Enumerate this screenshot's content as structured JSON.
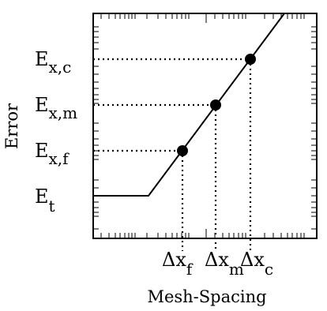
{
  "chart_data": {
    "type": "line",
    "title": "",
    "xlabel": "Mesh-Spacing",
    "ylabel": "Error",
    "x_scale": "log",
    "y_scale": "log",
    "y_ticks": [
      {
        "main": "E",
        "sub": "t",
        "id": "e-t"
      },
      {
        "main": "E",
        "sub": "x,f",
        "id": "e-xf"
      },
      {
        "main": "E",
        "sub": "x,m",
        "id": "e-xm"
      },
      {
        "main": "E",
        "sub": "x,c",
        "id": "e-xc"
      }
    ],
    "x_ticks": [
      {
        "main": "Δx",
        "sub": "f",
        "id": "dx-f"
      },
      {
        "main": "Δx",
        "sub": "m",
        "id": "dx-m"
      },
      {
        "main": "Δx",
        "sub": "c",
        "id": "dx-c"
      }
    ],
    "points": [
      {
        "x_label": "Δx_f",
        "y_label": "E_x,f"
      },
      {
        "x_label": "Δx_m",
        "y_label": "E_x,m"
      },
      {
        "x_label": "Δx_c",
        "y_label": "E_x,c"
      }
    ],
    "series": [
      {
        "style": "solid",
        "segments": [
          "plateau at E_t for small mesh spacing",
          "linear rise through the three marked points"
        ]
      }
    ],
    "grid": false,
    "colors": {
      "line": "#000000",
      "marker": "#000000",
      "guide": "#000000"
    }
  }
}
